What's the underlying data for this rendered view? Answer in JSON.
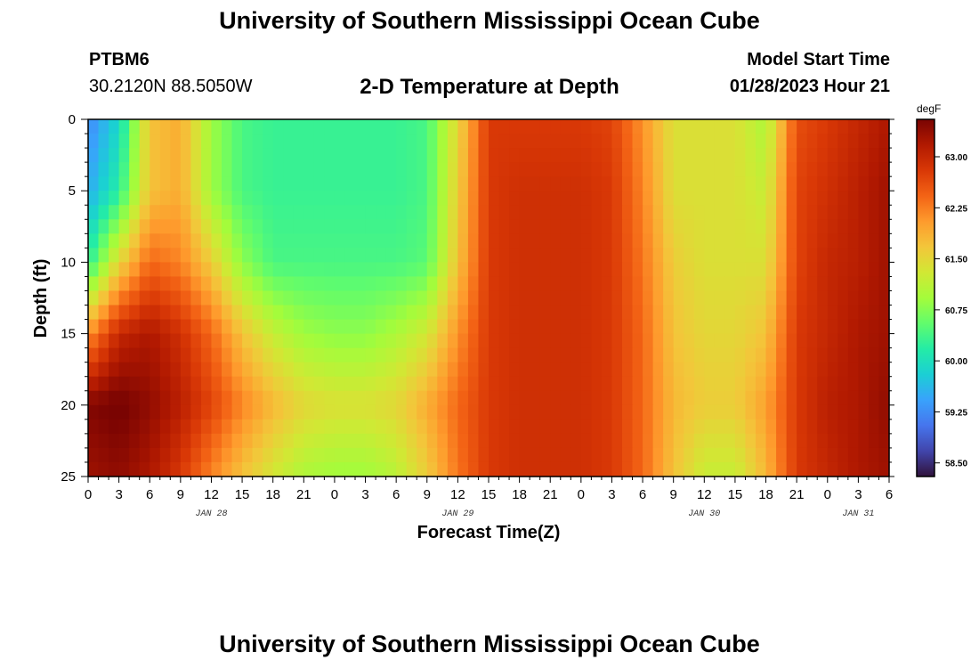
{
  "header": {
    "title": "University of Southern Mississippi Ocean Cube",
    "station": "PTBM6",
    "location": "30.2120N  88.5050W",
    "plot_title": "2-D Temperature at Depth",
    "model_label": "Model Start Time",
    "model_time": "01/28/2023 Hour 21"
  },
  "footer": {
    "title": "University of Southern Mississippi Ocean Cube"
  },
  "chart_data": {
    "type": "heatmap",
    "title": "2-D Temperature at Depth",
    "xlabel": "Forecast Time(Z)",
    "ylabel": "Depth (ft)",
    "colorbar_unit": "degF",
    "colorbar_ticks": [
      "63.00",
      "62.25",
      "61.50",
      "60.75",
      "60.00",
      "59.25",
      "58.50"
    ],
    "colorbar_range": [
      58.3,
      63.55
    ],
    "x_tick_labels": [
      "0",
      "3",
      "6",
      "9",
      "12",
      "15",
      "18",
      "21",
      "0",
      "3",
      "6",
      "9",
      "12",
      "15",
      "18",
      "21",
      "0",
      "3",
      "6",
      "9",
      "12",
      "15",
      "18",
      "21",
      "0",
      "3",
      "6"
    ],
    "x_date_labels": [
      {
        "label": "JAN 28",
        "hour": 12
      },
      {
        "label": "JAN 29",
        "hour": 36
      },
      {
        "label": "JAN 30",
        "hour": 60
      },
      {
        "label": "JAN 31",
        "hour": 75
      }
    ],
    "x_range_hours": [
      0,
      78
    ],
    "y_ticks": [
      "0",
      "5",
      "10",
      "15",
      "20",
      "25"
    ],
    "y_range": [
      0,
      25
    ],
    "y_inverted": true,
    "colormap": [
      "#30123b",
      "#4145ab",
      "#4675ed",
      "#39a2fc",
      "#1bcfd4",
      "#24eca6",
      "#61fc6c",
      "#a4fc3b",
      "#d1e834",
      "#f3c63a",
      "#fe9b2d",
      "#f36315",
      "#d93806",
      "#b11901",
      "#7a0402"
    ],
    "grid": {
      "x_hours": [
        0,
        3,
        6,
        9,
        12,
        15,
        18,
        21,
        24,
        27,
        30,
        33,
        36,
        39,
        42,
        45,
        48,
        51,
        54,
        57,
        60,
        63,
        66,
        69,
        72,
        75,
        78
      ],
      "depths_ft": [
        0,
        5,
        10,
        15,
        20,
        25
      ],
      "values_degF": [
        [
          59.2,
          59.9,
          61.7,
          61.9,
          60.9,
          60.4,
          60.3,
          60.3,
          60.3,
          60.3,
          60.3,
          60.4,
          61.5,
          62.8,
          62.8,
          62.8,
          62.8,
          62.7,
          62.1,
          61.4,
          61.4,
          61.4,
          61.0,
          62.6,
          62.8,
          63.0,
          63.2
        ],
        [
          59.5,
          60.2,
          61.7,
          61.9,
          60.9,
          60.4,
          60.3,
          60.3,
          60.3,
          60.3,
          60.3,
          60.4,
          61.6,
          62.8,
          62.9,
          62.9,
          62.9,
          62.8,
          62.2,
          61.4,
          61.4,
          61.4,
          61.2,
          62.7,
          62.9,
          63.1,
          63.3
        ],
        [
          60.2,
          61.5,
          62.4,
          62.2,
          61.6,
          60.8,
          60.4,
          60.4,
          60.4,
          60.4,
          60.4,
          60.5,
          61.7,
          62.8,
          62.9,
          62.9,
          62.9,
          62.8,
          62.3,
          61.6,
          61.4,
          61.4,
          61.4,
          62.7,
          63.0,
          63.1,
          63.3
        ],
        [
          62.1,
          63.0,
          63.2,
          62.9,
          62.4,
          61.7,
          61.2,
          60.9,
          60.8,
          60.8,
          61.0,
          61.3,
          62.1,
          62.8,
          62.9,
          62.9,
          62.9,
          62.8,
          62.4,
          61.7,
          61.5,
          61.5,
          61.7,
          62.8,
          63.0,
          63.2,
          63.3
        ],
        [
          63.5,
          63.6,
          63.4,
          63.1,
          62.7,
          62.2,
          61.8,
          61.5,
          61.4,
          61.4,
          61.5,
          61.9,
          62.4,
          62.8,
          62.9,
          62.9,
          62.9,
          62.8,
          62.4,
          61.8,
          61.6,
          61.6,
          62.0,
          62.8,
          63.1,
          63.2,
          63.4
        ],
        [
          63.3,
          63.4,
          63.2,
          62.8,
          62.2,
          61.7,
          61.3,
          61.0,
          60.9,
          60.9,
          61.1,
          61.6,
          62.3,
          62.8,
          62.9,
          62.9,
          62.9,
          62.8,
          62.4,
          61.7,
          61.2,
          61.2,
          61.8,
          62.8,
          63.0,
          63.2,
          63.3
        ]
      ]
    }
  }
}
